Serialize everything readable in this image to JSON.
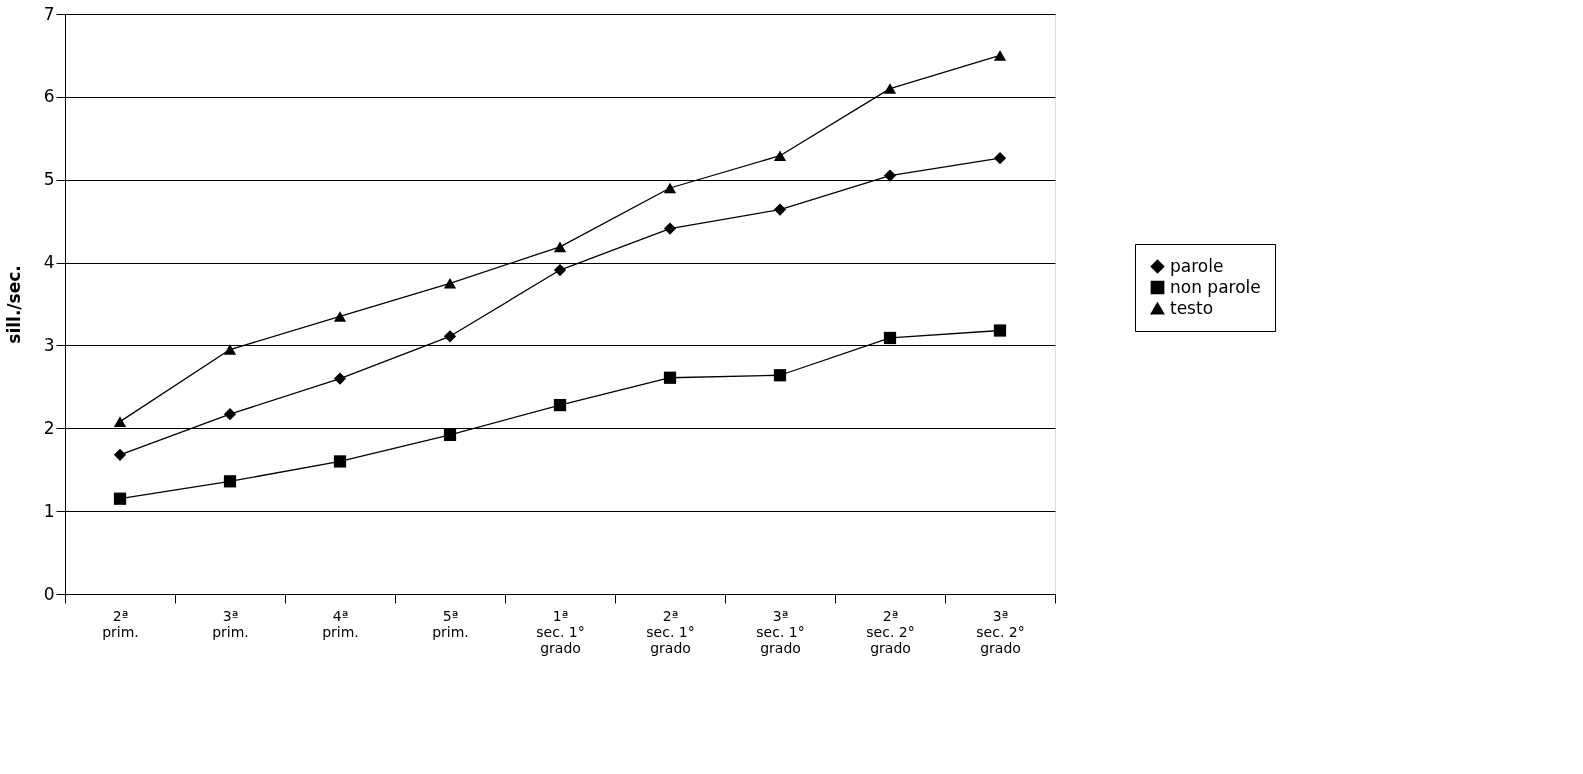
{
  "chart_data": {
    "type": "line",
    "ylabel": "sill./sec.",
    "categories": [
      "2ª\nprim.",
      "3ª\nprim.",
      "4ª\nprim.",
      "5ª\nprim.",
      "1ª\nsec. 1°\ngrado",
      "2ª\nsec. 1°\ngrado",
      "3ª\nsec. 1°\ngrado",
      "2ª\nsec. 2°\ngrado",
      "3ª\nsec. 2°\ngrado"
    ],
    "series": [
      {
        "name": "parole",
        "color": "#000000",
        "marker": "diamond",
        "values": [
          1.68,
          2.17,
          2.6,
          3.11,
          3.91,
          4.41,
          4.64,
          5.05,
          5.26
        ]
      },
      {
        "name": "non parole",
        "color": "#000000",
        "marker": "square",
        "values": [
          1.15,
          1.36,
          1.6,
          1.92,
          2.28,
          2.61,
          2.64,
          3.09,
          3.18
        ]
      },
      {
        "name": "testo",
        "color": "#000000",
        "marker": "triangle",
        "values": [
          2.08,
          2.95,
          3.35,
          3.75,
          4.19,
          4.9,
          5.29,
          6.1,
          6.5
        ]
      }
    ],
    "ylim": [
      0,
      7
    ],
    "yticks": [
      0,
      1,
      2,
      3,
      4,
      5,
      6,
      7
    ],
    "grid": "y",
    "legend": "right",
    "line_style": "solid"
  }
}
